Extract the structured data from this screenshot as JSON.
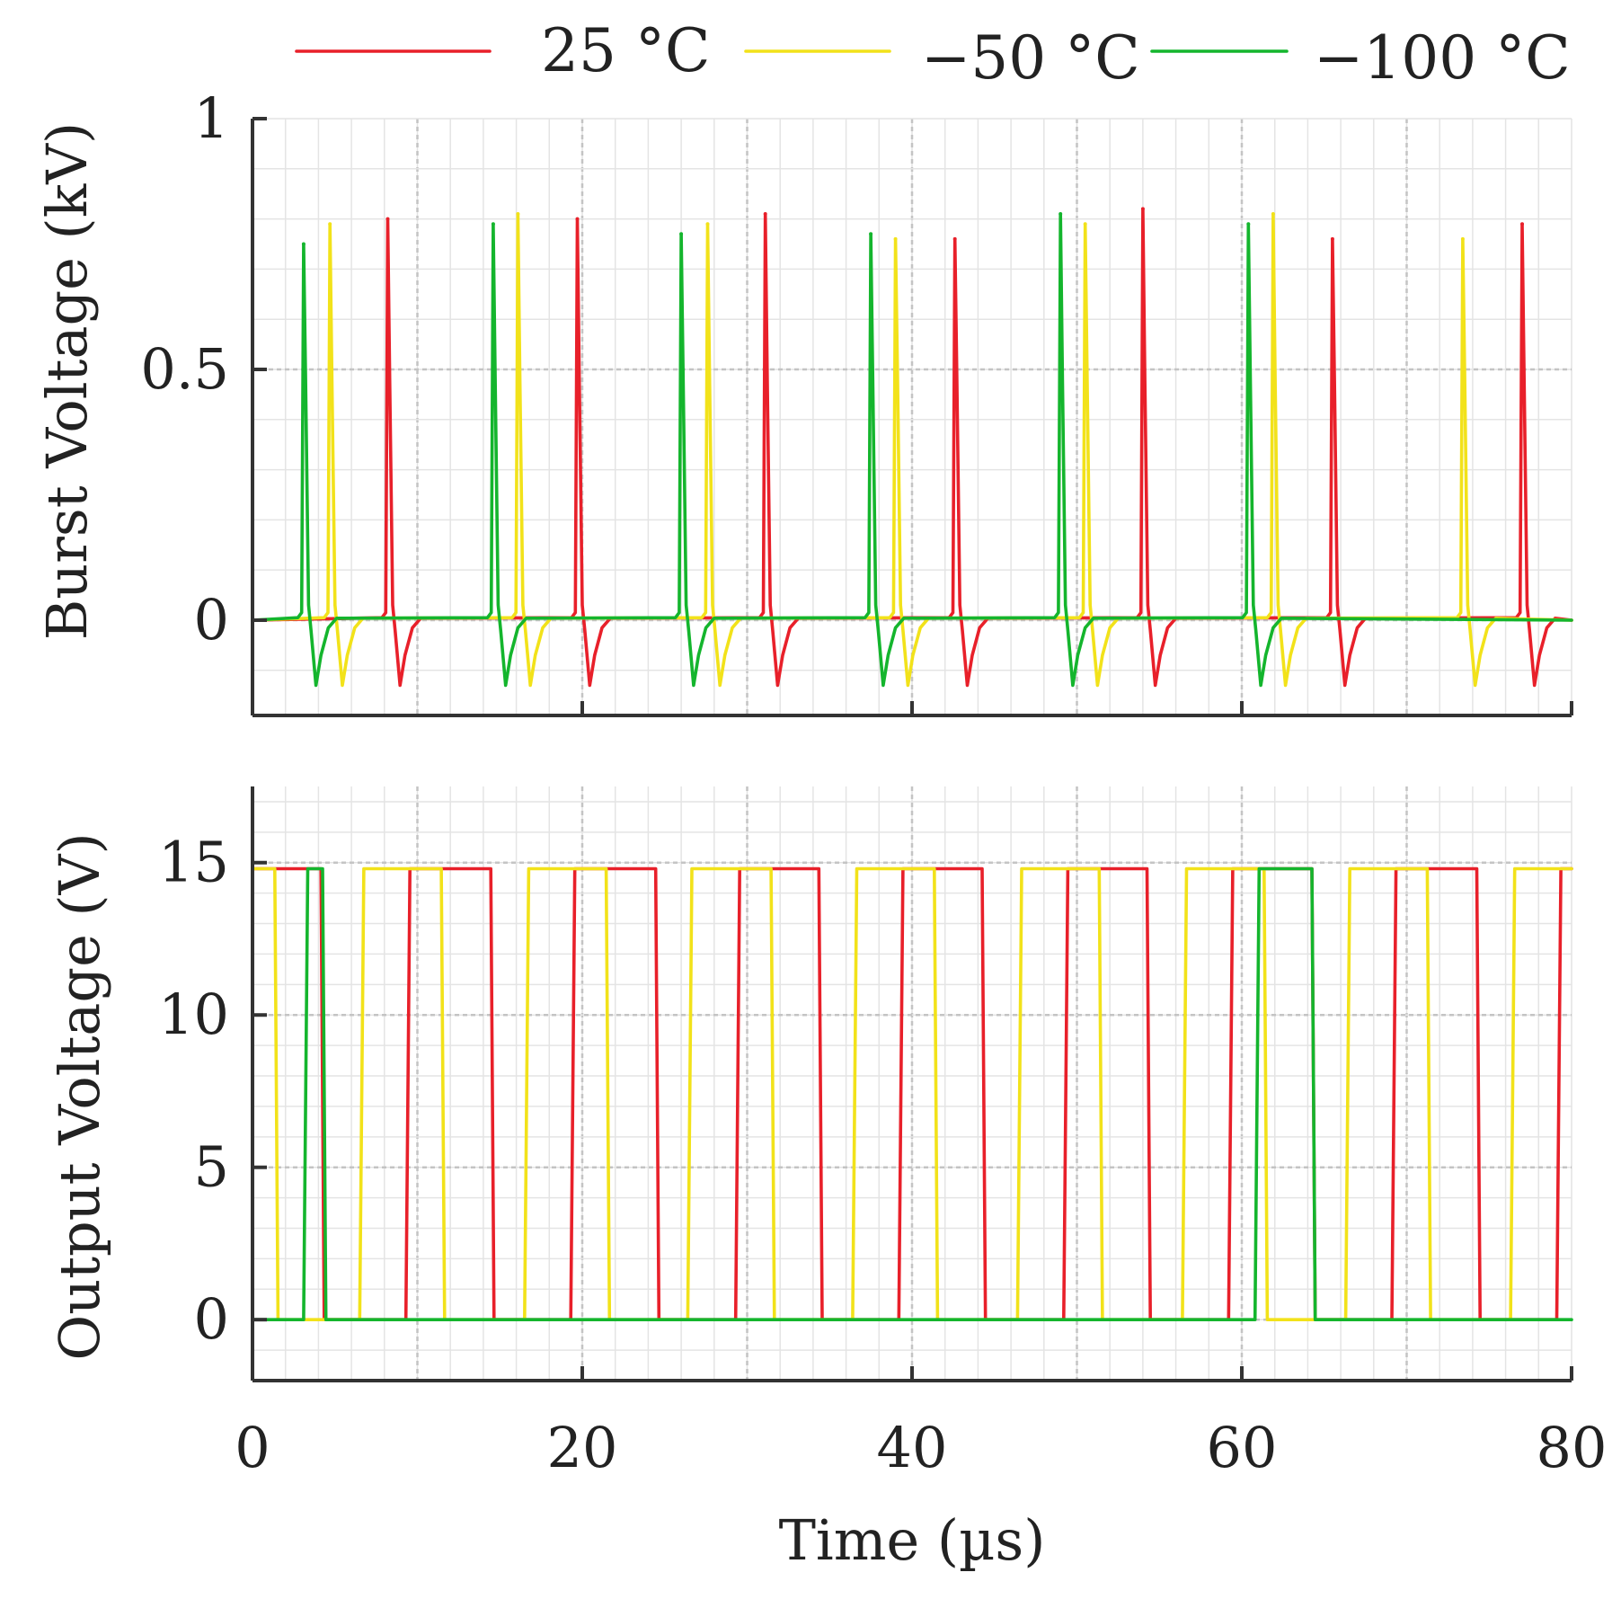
{
  "chart_data": [
    {
      "id": "burst",
      "type": "line",
      "title": "",
      "xlabel": "",
      "ylabel": "Burst Voltage (kV)",
      "xlim": [
        0,
        80
      ],
      "ylim": [
        -0.19,
        1.0
      ],
      "yticks": [
        {
          "value": 0,
          "label": "0"
        },
        {
          "value": 0.5,
          "label": "0.5"
        },
        {
          "value": 1,
          "label": "1"
        }
      ],
      "grid": true,
      "pulse_undershoot_kV": -0.13,
      "series": [
        {
          "name": "25 °C",
          "color": "#e8202a",
          "pulse_times_us": [
            8.2,
            19.7,
            31.1,
            42.6,
            54.0,
            65.5,
            77.0
          ],
          "pulse_peaks_kV": [
            0.8,
            0.8,
            0.81,
            0.76,
            0.82,
            0.76,
            0.79
          ]
        },
        {
          "name": "−50 °C",
          "color": "#f2e21a",
          "pulse_times_us": [
            4.7,
            16.1,
            27.6,
            39.0,
            50.5,
            61.9,
            73.4
          ],
          "pulse_peaks_kV": [
            0.79,
            0.81,
            0.79,
            0.76,
            0.79,
            0.81,
            0.76
          ]
        },
        {
          "name": "−100 °C",
          "color": "#14b52d",
          "pulse_times_us": [
            3.1,
            14.6,
            26.0,
            37.5,
            49.0,
            60.4
          ],
          "pulse_peaks_kV": [
            0.75,
            0.79,
            0.77,
            0.77,
            0.81,
            0.79
          ]
        }
      ]
    },
    {
      "id": "output",
      "type": "line",
      "title": "",
      "xlabel": "Time (µs)",
      "ylabel": "Output Voltage (V)",
      "xlim": [
        0,
        80
      ],
      "ylim": [
        -2,
        17.5
      ],
      "yticks": [
        {
          "value": 0,
          "label": "0"
        },
        {
          "value": 5,
          "label": "5"
        },
        {
          "value": 10,
          "label": "10"
        },
        {
          "value": 15,
          "label": "15"
        }
      ],
      "xticks": [
        {
          "value": 0,
          "label": "0"
        },
        {
          "value": 20,
          "label": "20"
        },
        {
          "value": 40,
          "label": "40"
        },
        {
          "value": 60,
          "label": "60"
        },
        {
          "value": 80,
          "label": "80"
        }
      ],
      "grid": true,
      "levels_V": {
        "low": 0,
        "high": 14.8
      },
      "series": [
        {
          "name": "25 °C",
          "color": "#e8202a",
          "high_intervals_us": [
            [
              0,
              4.2
            ],
            [
              9.3,
              14.5
            ],
            [
              19.3,
              24.5
            ],
            [
              29.3,
              34.4
            ],
            [
              39.2,
              44.3
            ],
            [
              49.2,
              54.3
            ],
            [
              59.2,
              64.3
            ],
            [
              69.1,
              74.3
            ],
            [
              79.1,
              80
            ]
          ]
        },
        {
          "name": "−50 °C",
          "color": "#f2e21a",
          "high_intervals_us": [
            [
              0,
              1.4
            ],
            [
              6.5,
              11.5
            ],
            [
              16.5,
              21.5
            ],
            [
              26.4,
              31.5
            ],
            [
              36.4,
              41.4
            ],
            [
              46.4,
              51.4
            ],
            [
              56.4,
              61.4
            ],
            [
              66.3,
              71.3
            ],
            [
              76.3,
              80
            ]
          ]
        },
        {
          "name": "−100 °C",
          "color": "#14b52d",
          "high_intervals_us": [
            [
              3.1,
              4.3
            ],
            [
              60.8,
              64.3
            ]
          ]
        }
      ]
    }
  ]
}
